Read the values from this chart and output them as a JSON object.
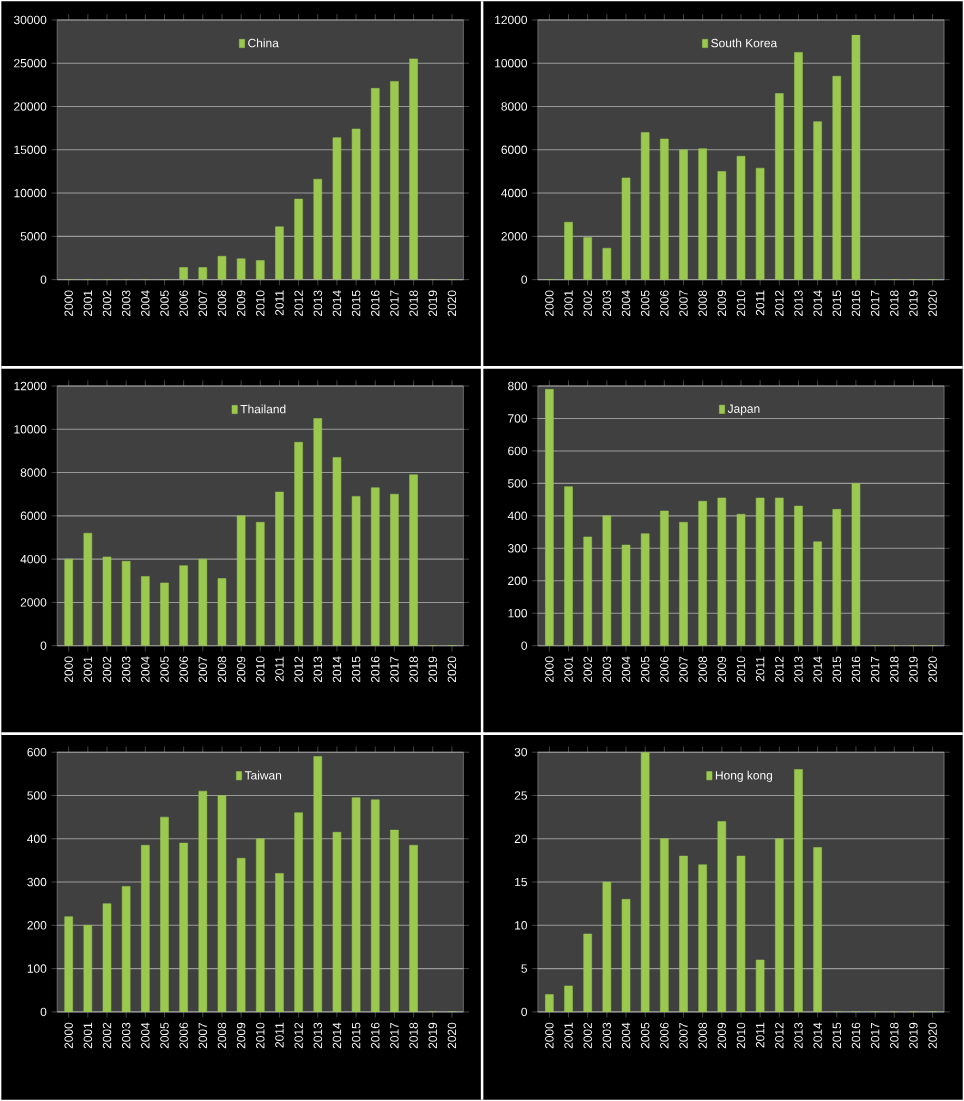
{
  "chart_data": [
    {
      "type": "bar",
      "categories": [
        "2000",
        "2001",
        "2002",
        "2003",
        "2004",
        "2005",
        "2006",
        "2007",
        "2008",
        "2009",
        "2010",
        "2011",
        "2012",
        "2013",
        "2014",
        "2015",
        "2016",
        "2017",
        "2018",
        "2019",
        "2020"
      ],
      "series": [
        {
          "name": "China",
          "color": "#9bc84f",
          "values": [
            0,
            0,
            0,
            0,
            0,
            0,
            1400,
            1400,
            2700,
            2400,
            2200,
            6100,
            9300,
            11600,
            16400,
            17400,
            22100,
            22900,
            25500,
            0,
            0
          ]
        }
      ],
      "ylim": [
        0,
        30000
      ],
      "yticks": [
        0,
        5000,
        10000,
        15000,
        20000,
        25000,
        30000
      ],
      "grid": "y",
      "legend": "top"
    },
    {
      "type": "bar",
      "categories": [
        "2000",
        "2001",
        "2002",
        "2003",
        "2004",
        "2005",
        "2006",
        "2007",
        "2008",
        "2009",
        "2010",
        "2011",
        "2012",
        "2013",
        "2014",
        "2015",
        "2016",
        "2017",
        "2018",
        "2019",
        "2020"
      ],
      "series": [
        {
          "name": "South Korea",
          "color": "#9bc84f",
          "values": [
            0,
            2650,
            1950,
            1450,
            4700,
            6800,
            6500,
            6000,
            6050,
            5000,
            5700,
            5150,
            8600,
            10500,
            7300,
            9400,
            11300,
            0,
            0,
            0,
            0
          ]
        }
      ],
      "ylim": [
        0,
        12000
      ],
      "yticks": [
        0,
        2000,
        4000,
        6000,
        8000,
        10000,
        12000
      ],
      "grid": "y",
      "legend": "top"
    },
    {
      "type": "bar",
      "categories": [
        "2000",
        "2001",
        "2002",
        "2003",
        "2004",
        "2005",
        "2006",
        "2007",
        "2008",
        "2009",
        "2010",
        "2011",
        "2012",
        "2013",
        "2014",
        "2015",
        "2016",
        "2017",
        "2018",
        "2019",
        "2020"
      ],
      "series": [
        {
          "name": "Thailand",
          "color": "#9bc84f",
          "values": [
            4000,
            5200,
            4100,
            3900,
            3200,
            2900,
            3700,
            4000,
            3100,
            6000,
            5700,
            7100,
            9400,
            10500,
            8700,
            6900,
            7300,
            7000,
            7900,
            0,
            0
          ]
        }
      ],
      "ylim": [
        0,
        12000
      ],
      "yticks": [
        0,
        2000,
        4000,
        6000,
        8000,
        10000,
        12000
      ],
      "grid": "y",
      "legend": "top"
    },
    {
      "type": "bar",
      "categories": [
        "2000",
        "2001",
        "2002",
        "2003",
        "2004",
        "2005",
        "2006",
        "2007",
        "2008",
        "2009",
        "2010",
        "2011",
        "2012",
        "2013",
        "2014",
        "2015",
        "2016",
        "2017",
        "2018",
        "2019",
        "2020"
      ],
      "series": [
        {
          "name": "Japan",
          "color": "#9bc84f",
          "values": [
            790,
            490,
            335,
            400,
            310,
            345,
            415,
            380,
            445,
            455,
            405,
            455,
            455,
            430,
            320,
            420,
            500,
            0,
            0,
            0,
            0
          ]
        }
      ],
      "ylim": [
        0,
        800
      ],
      "yticks": [
        0,
        100,
        200,
        300,
        400,
        500,
        600,
        700,
        800
      ],
      "grid": "y",
      "legend": "top"
    },
    {
      "type": "bar",
      "categories": [
        "2000",
        "2001",
        "2002",
        "2003",
        "2004",
        "2005",
        "2006",
        "2007",
        "2008",
        "2009",
        "2010",
        "2011",
        "2012",
        "2013",
        "2014",
        "2015",
        "2016",
        "2017",
        "2018",
        "2019",
        "2020"
      ],
      "series": [
        {
          "name": "Taiwan",
          "color": "#9bc84f",
          "values": [
            220,
            200,
            250,
            290,
            385,
            450,
            390,
            510,
            500,
            355,
            400,
            320,
            460,
            590,
            415,
            495,
            490,
            420,
            385,
            0,
            0
          ]
        }
      ],
      "ylim": [
        0,
        600
      ],
      "yticks": [
        0,
        100,
        200,
        300,
        400,
        500,
        600
      ],
      "grid": "y",
      "legend": "top"
    },
    {
      "type": "bar",
      "categories": [
        "2000",
        "2001",
        "2002",
        "2003",
        "2004",
        "2005",
        "2006",
        "2007",
        "2008",
        "2009",
        "2010",
        "2011",
        "2012",
        "2013",
        "2014",
        "2015",
        "2016",
        "2017",
        "2018",
        "2019",
        "2020"
      ],
      "series": [
        {
          "name": "Hong kong",
          "color": "#9bc84f",
          "values": [
            2,
            3,
            9,
            15,
            13,
            30,
            20,
            18,
            17,
            22,
            18,
            6,
            20,
            28,
            19,
            0,
            0,
            0,
            0,
            0,
            0
          ]
        }
      ],
      "ylim": [
        0,
        30
      ],
      "yticks": [
        0,
        5,
        10,
        15,
        20,
        25,
        30
      ],
      "grid": "y",
      "legend": "top"
    }
  ]
}
